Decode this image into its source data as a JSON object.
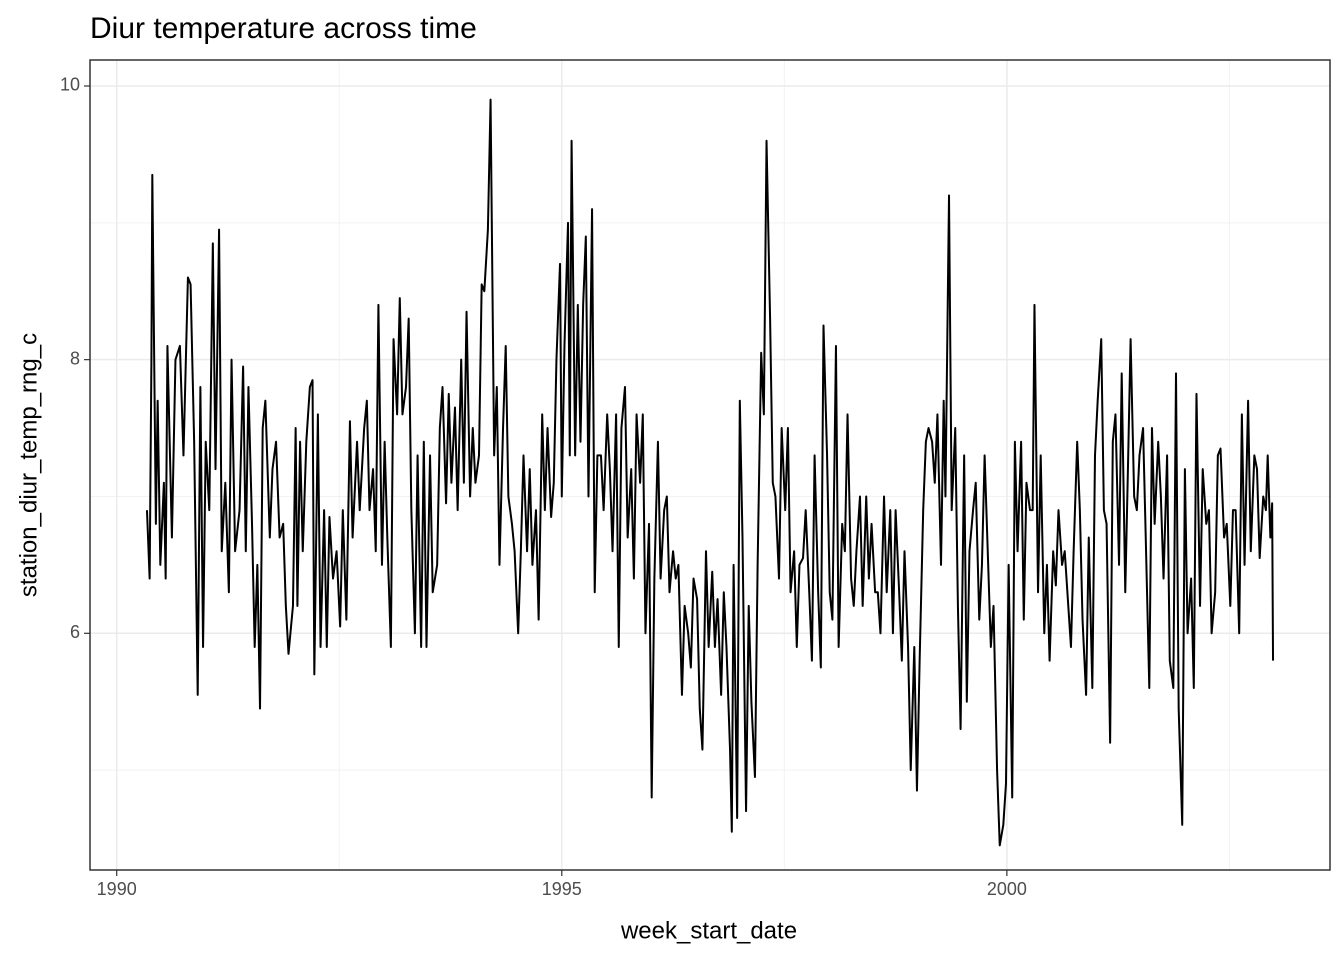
{
  "chart_data": {
    "type": "line",
    "title": "Diur temperature across time",
    "x_label": "week_start_date",
    "y_label": "station_diur_temp_rng_c",
    "xlim": [
      1989.7,
      2003.63
    ],
    "ylim": [
      4.27,
      10.19
    ],
    "xticks": [
      1990,
      1995,
      2000
    ],
    "yticks": [
      6,
      8,
      10
    ],
    "x_minor_grid": [
      1992.5,
      1997.5,
      2002.5
    ],
    "y_minor_grid": [
      5,
      7,
      9
    ],
    "grid": true,
    "x": [
      1990.34,
      1990.37,
      1990.39,
      1990.4,
      1990.44,
      1990.46,
      1990.49,
      1990.53,
      1990.55,
      1990.57,
      1990.62,
      1990.66,
      1990.71,
      1990.75,
      1990.8,
      1990.83,
      1990.87,
      1990.91,
      1990.94,
      1990.97,
      1991.0,
      1991.04,
      1991.08,
      1991.11,
      1991.15,
      1991.18,
      1991.22,
      1991.26,
      1991.29,
      1991.33,
      1991.38,
      1991.42,
      1991.45,
      1991.48,
      1991.52,
      1991.55,
      1991.58,
      1991.61,
      1991.64,
      1991.67,
      1991.72,
      1991.75,
      1991.79,
      1991.83,
      1991.87,
      1991.9,
      1991.93,
      1991.98,
      1992.01,
      1992.03,
      1992.06,
      1992.09,
      1992.13,
      1992.17,
      1992.2,
      1992.22,
      1992.26,
      1992.29,
      1992.33,
      1992.36,
      1992.39,
      1992.43,
      1992.47,
      1992.51,
      1992.54,
      1992.58,
      1992.62,
      1992.65,
      1992.7,
      1992.73,
      1992.78,
      1992.81,
      1992.84,
      1992.88,
      1992.91,
      1992.94,
      1992.98,
      1993.01,
      1993.04,
      1993.08,
      1993.11,
      1993.15,
      1993.18,
      1993.21,
      1993.25,
      1993.28,
      1993.31,
      1993.35,
      1993.38,
      1993.42,
      1993.45,
      1993.48,
      1993.52,
      1993.55,
      1993.6,
      1993.63,
      1993.66,
      1993.7,
      1993.73,
      1993.76,
      1993.8,
      1993.83,
      1993.87,
      1993.9,
      1993.93,
      1993.97,
      1994.0,
      1994.03,
      1994.07,
      1994.1,
      1994.13,
      1994.17,
      1994.2,
      1994.24,
      1994.27,
      1994.3,
      1994.34,
      1994.37,
      1994.4,
      1994.44,
      1994.47,
      1994.51,
      1994.54,
      1994.57,
      1994.61,
      1994.64,
      1994.67,
      1994.71,
      1994.74,
      1994.78,
      1994.81,
      1994.84,
      1994.88,
      1994.91,
      1994.94,
      1994.98,
      1995.0,
      1995.03,
      1995.07,
      1995.09,
      1995.11,
      1995.15,
      1995.18,
      1995.21,
      1995.24,
      1995.27,
      1995.3,
      1995.34,
      1995.37,
      1995.4,
      1995.44,
      1995.47,
      1995.51,
      1995.54,
      1995.57,
      1995.61,
      1995.64,
      1995.67,
      1995.71,
      1995.74,
      1995.78,
      1995.81,
      1995.84,
      1995.88,
      1995.91,
      1995.94,
      1995.98,
      1996.01,
      1996.04,
      1996.08,
      1996.11,
      1996.15,
      1996.18,
      1996.21,
      1996.25,
      1996.28,
      1996.31,
      1996.35,
      1996.38,
      1996.42,
      1996.45,
      1996.48,
      1996.52,
      1996.55,
      1996.58,
      1996.62,
      1996.65,
      1996.69,
      1996.72,
      1996.75,
      1996.79,
      1996.82,
      1996.85,
      1996.89,
      1996.91,
      1996.93,
      1996.97,
      1997.0,
      1997.03,
      1997.07,
      1997.1,
      1997.13,
      1997.17,
      1997.2,
      1997.24,
      1997.27,
      1997.3,
      1997.34,
      1997.37,
      1997.4,
      1997.44,
      1997.47,
      1997.51,
      1997.54,
      1997.57,
      1997.61,
      1997.64,
      1997.67,
      1997.71,
      1997.74,
      1997.78,
      1997.81,
      1997.84,
      1997.88,
      1997.91,
      1997.94,
      1997.98,
      1998.01,
      1998.04,
      1998.08,
      1998.11,
      1998.15,
      1998.18,
      1998.21,
      1998.25,
      1998.28,
      1998.31,
      1998.35,
      1998.38,
      1998.42,
      1998.45,
      1998.48,
      1998.52,
      1998.55,
      1998.58,
      1998.62,
      1998.65,
      1998.69,
      1998.72,
      1998.75,
      1998.79,
      1998.82,
      1998.85,
      1998.89,
      1998.92,
      1998.96,
      1998.99,
      1999.02,
      1999.06,
      1999.09,
      1999.12,
      1999.16,
      1999.19,
      1999.22,
      1999.26,
      1999.29,
      1999.31,
      1999.35,
      1999.38,
      1999.42,
      1999.45,
      1999.48,
      1999.52,
      1999.55,
      1999.58,
      1999.62,
      1999.65,
      1999.69,
      1999.72,
      1999.75,
      1999.79,
      1999.82,
      1999.85,
      1999.89,
      1999.92,
      1999.96,
      1999.99,
      2000.02,
      2000.06,
      2000.09,
      2000.12,
      2000.16,
      2000.19,
      2000.22,
      2000.26,
      2000.29,
      2000.31,
      2000.35,
      2000.38,
      2000.42,
      2000.45,
      2000.48,
      2000.52,
      2000.55,
      2000.58,
      2000.62,
      2000.65,
      2000.69,
      2000.72,
      2000.75,
      2000.79,
      2000.82,
      2000.85,
      2000.89,
      2000.92,
      2000.96,
      2000.99,
      2001.02,
      2001.06,
      2001.09,
      2001.12,
      2001.16,
      2001.19,
      2001.22,
      2001.26,
      2001.29,
      2001.33,
      2001.36,
      2001.39,
      2001.43,
      2001.46,
      2001.49,
      2001.53,
      2001.56,
      2001.6,
      2001.63,
      2001.66,
      2001.7,
      2001.73,
      2001.76,
      2001.8,
      2001.83,
      2001.87,
      2001.9,
      2001.93,
      2001.97,
      2002.0,
      2002.03,
      2002.07,
      2002.1,
      2002.13,
      2002.17,
      2002.2,
      2002.24,
      2002.27,
      2002.3,
      2002.34,
      2002.37,
      2002.4,
      2002.44,
      2002.47,
      2002.51,
      2002.54,
      2002.57,
      2002.61,
      2002.64,
      2002.67,
      2002.71,
      2002.74,
      2002.78,
      2002.81,
      2002.84,
      2002.88,
      2002.91,
      2002.93,
      2002.96,
      2002.98,
      2002.99
    ],
    "series": [
      {
        "color": "#000000",
        "values": [
          6.9,
          6.4,
          8.0,
          9.35,
          6.8,
          7.7,
          6.5,
          7.1,
          6.4,
          8.1,
          6.7,
          8.0,
          8.1,
          7.3,
          8.6,
          8.55,
          7.4,
          5.55,
          7.8,
          5.9,
          7.4,
          6.9,
          8.85,
          7.2,
          8.95,
          6.6,
          7.1,
          6.3,
          8.0,
          6.6,
          6.9,
          7.95,
          6.6,
          7.8,
          6.8,
          5.9,
          6.5,
          5.45,
          7.5,
          7.7,
          6.7,
          7.2,
          7.4,
          6.7,
          6.8,
          6.2,
          5.85,
          6.2,
          7.5,
          6.2,
          7.4,
          6.6,
          7.4,
          7.8,
          7.85,
          5.7,
          7.6,
          5.9,
          6.9,
          5.9,
          6.85,
          6.4,
          6.6,
          6.05,
          6.9,
          6.1,
          7.55,
          6.7,
          7.4,
          6.9,
          7.5,
          7.7,
          6.9,
          7.2,
          6.6,
          8.4,
          6.5,
          7.4,
          6.7,
          5.9,
          8.15,
          7.6,
          8.45,
          7.6,
          7.8,
          8.3,
          6.9,
          6.0,
          7.3,
          5.9,
          7.4,
          5.9,
          7.3,
          6.3,
          6.5,
          7.5,
          7.8,
          6.95,
          7.75,
          7.1,
          7.65,
          6.9,
          8.0,
          7.1,
          8.35,
          7.0,
          7.5,
          7.1,
          7.3,
          8.55,
          8.5,
          8.95,
          9.9,
          7.3,
          7.8,
          6.5,
          7.5,
          8.1,
          7.0,
          6.8,
          6.6,
          6.0,
          6.6,
          7.3,
          6.6,
          7.2,
          6.5,
          6.9,
          6.1,
          7.6,
          6.9,
          7.5,
          6.85,
          7.1,
          8.0,
          8.7,
          7.0,
          8.1,
          9.0,
          7.3,
          9.6,
          7.3,
          8.4,
          7.4,
          8.4,
          8.9,
          7.0,
          9.1,
          6.3,
          7.3,
          7.3,
          6.9,
          7.6,
          7.2,
          6.6,
          7.6,
          5.9,
          7.5,
          7.8,
          6.7,
          7.2,
          6.4,
          7.6,
          7.1,
          7.6,
          6.0,
          6.8,
          4.8,
          6.4,
          7.4,
          6.4,
          6.9,
          7.0,
          6.3,
          6.6,
          6.4,
          6.5,
          5.55,
          6.2,
          6.0,
          5.75,
          6.4,
          6.25,
          5.45,
          5.15,
          6.6,
          5.9,
          6.45,
          5.9,
          6.25,
          5.55,
          6.3,
          5.9,
          5.15,
          4.55,
          6.5,
          4.65,
          7.7,
          6.7,
          4.7,
          6.2,
          5.5,
          4.95,
          6.5,
          8.05,
          7.6,
          9.6,
          8.3,
          7.1,
          7.0,
          6.4,
          7.5,
          6.9,
          7.5,
          6.3,
          6.6,
          5.9,
          6.5,
          6.55,
          6.9,
          6.3,
          5.8,
          7.3,
          6.3,
          5.75,
          8.25,
          7.3,
          6.3,
          6.1,
          8.1,
          5.9,
          6.8,
          6.6,
          7.6,
          6.4,
          6.2,
          6.6,
          7.0,
          6.2,
          7.0,
          6.4,
          6.8,
          6.3,
          6.3,
          6.0,
          7.0,
          6.3,
          6.9,
          6.0,
          6.9,
          6.3,
          5.8,
          6.6,
          5.9,
          5.0,
          5.9,
          4.85,
          5.8,
          6.9,
          7.4,
          7.5,
          7.4,
          7.1,
          7.6,
          6.5,
          7.7,
          7.0,
          9.2,
          6.9,
          7.5,
          6.2,
          5.3,
          7.3,
          5.5,
          6.6,
          6.9,
          7.1,
          6.1,
          6.5,
          7.3,
          6.5,
          5.9,
          6.2,
          5.0,
          4.45,
          4.6,
          4.9,
          6.5,
          4.8,
          7.4,
          6.6,
          7.4,
          6.1,
          7.1,
          6.9,
          6.9,
          8.4,
          6.3,
          7.3,
          6.0,
          6.5,
          5.8,
          6.6,
          6.35,
          6.9,
          6.5,
          6.6,
          6.2,
          5.9,
          6.6,
          7.4,
          6.9,
          6.1,
          5.55,
          6.7,
          5.6,
          7.3,
          7.7,
          8.15,
          6.9,
          6.8,
          5.2,
          7.4,
          7.6,
          6.5,
          7.9,
          6.3,
          7.2,
          8.15,
          7.0,
          6.9,
          7.3,
          7.5,
          6.7,
          5.6,
          7.5,
          6.8,
          7.4,
          7.0,
          6.4,
          7.3,
          5.8,
          5.6,
          7.9,
          5.45,
          4.6,
          7.2,
          6.0,
          6.4,
          5.6,
          7.75,
          6.2,
          7.2,
          6.8,
          6.9,
          6.0,
          6.3,
          7.3,
          7.35,
          6.7,
          6.8,
          6.2,
          6.9,
          6.9,
          6.0,
          7.6,
          6.5,
          7.7,
          6.6,
          7.3,
          7.2,
          6.55,
          7.0,
          6.9,
          7.3,
          6.7,
          6.95,
          5.8
        ]
      }
    ]
  }
}
